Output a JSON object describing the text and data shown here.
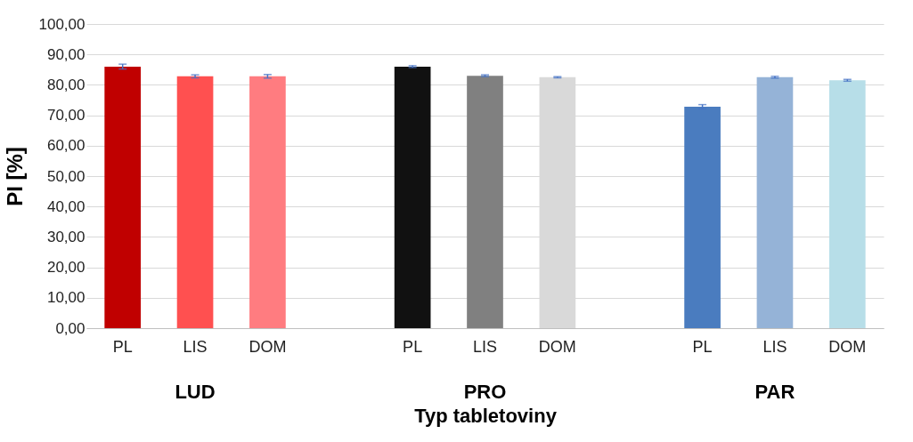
{
  "chart_data": {
    "type": "bar",
    "xlabel": "Typ tabletoviny",
    "ylabel": "PI [%]",
    "categories": [
      "PL",
      "LIS",
      "DOM",
      null,
      "PL",
      "LIS",
      "DOM",
      null,
      "PL",
      "LIS",
      "DOM"
    ],
    "values": [
      86.0,
      82.8,
      82.8,
      null,
      86.0,
      83.0,
      82.5,
      null,
      72.8,
      82.5,
      81.5
    ],
    "errors": [
      0.8,
      0.5,
      0.6,
      null,
      0.3,
      0.3,
      0.2,
      null,
      0.7,
      0.3,
      0.3
    ],
    "colors": [
      "#c00000",
      "#ff5050",
      "#ff7c80",
      null,
      "#111111",
      "#808080",
      "#d9d9d9",
      null,
      "#4a7cbf",
      "#95b3d7",
      "#b7dee8"
    ],
    "annotations": [
      "LUD",
      "PRO",
      "PAR"
    ],
    "ylim": [
      0,
      100
    ],
    "yticks": [
      {
        "value": 0,
        "label": "0,00"
      },
      {
        "value": 10,
        "label": "10,00"
      },
      {
        "value": 20,
        "label": "20,00"
      },
      {
        "value": 30,
        "label": "30,00"
      },
      {
        "value": 40,
        "label": "40,00"
      },
      {
        "value": 50,
        "label": "50,00"
      },
      {
        "value": 60,
        "label": "60,00"
      },
      {
        "value": 70,
        "label": "70,00"
      },
      {
        "value": 80,
        "label": "80,00"
      },
      {
        "value": 90,
        "label": "90,00"
      },
      {
        "value": 100,
        "label": "100,00"
      }
    ],
    "grid": "y"
  }
}
